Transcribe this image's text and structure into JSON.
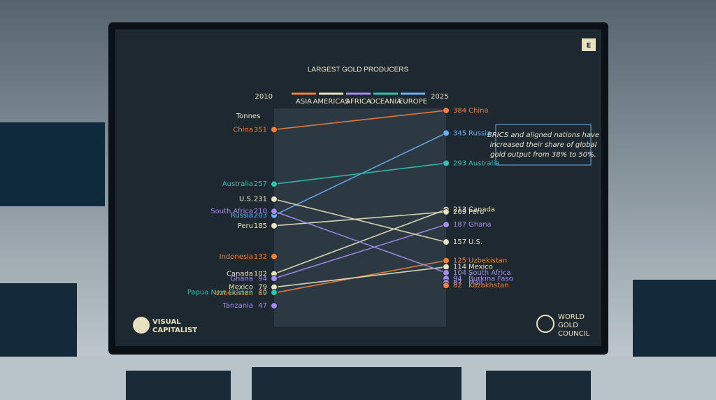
{
  "chart_data": {
    "type": "slope",
    "title": "LARGEST GOLD PRODUCERS",
    "x": [
      "2010",
      "2025"
    ],
    "y_label": "Tonnes",
    "ylim": [
      40,
      390
    ],
    "legend": [
      {
        "name": "ASIA",
        "color": "#f0813a"
      },
      {
        "name": "AMERICAS",
        "color": "#e9e2c0"
      },
      {
        "name": "AFRICA",
        "color": "#a58cf0"
      },
      {
        "name": "OCEANIA",
        "color": "#2ec4b0"
      },
      {
        "name": "EUROPE",
        "color": "#6aaef5"
      }
    ],
    "series": [
      {
        "name": "China",
        "color": "#f0813a",
        "values": [
          351,
          384
        ]
      },
      {
        "name": "Russia",
        "color": "#6aaef5",
        "values": [
          203,
          345
        ]
      },
      {
        "name": "Australia",
        "color": "#2ec4b0",
        "values": [
          257,
          293
        ]
      },
      {
        "name": "Canada",
        "color": "#e9e2c0",
        "values": [
          102,
          213
        ]
      },
      {
        "name": "Peru",
        "color": "#e9e2c0",
        "values": [
          185,
          209
        ]
      },
      {
        "name": "Ghana",
        "color": "#a58cf0",
        "values": [
          94,
          187
        ]
      },
      {
        "name": "U.S.",
        "color": "#e9e2c0",
        "values": [
          231,
          157
        ]
      },
      {
        "name": "Uzbekistan",
        "color": "#f0813a",
        "values": [
          69,
          125
        ]
      },
      {
        "name": "Mexico",
        "color": "#e9e2c0",
        "values": [
          79,
          114
        ]
      },
      {
        "name": "South Africa",
        "color": "#a58cf0",
        "values": [
          210,
          104
        ]
      },
      {
        "name": "Burkina Faso",
        "color": "#a58cf0",
        "values": [
          null,
          94
        ]
      },
      {
        "name": "Mali",
        "color": "#a58cf0",
        "values": [
          null,
          87
        ]
      },
      {
        "name": "Kazakhstan",
        "color": "#f0813a",
        "values": [
          null,
          82
        ]
      },
      {
        "name": "Indonesia",
        "color": "#f0813a",
        "values": [
          132,
          null
        ]
      },
      {
        "name": "Papua New Guinea",
        "color": "#2ec4b0",
        "values": [
          70,
          null
        ]
      },
      {
        "name": "Tanzania",
        "color": "#a58cf0",
        "values": [
          47,
          null
        ]
      }
    ],
    "annotation": [
      "BRICS and aligned nations have",
      "increased their share of global",
      "gold output from 38% to 50%."
    ],
    "logo_left": [
      "VISUAL",
      "CAPITALIST"
    ],
    "logo_right": [
      "WORLD",
      "GOLD",
      "COUNCIL"
    ],
    "badge": "E"
  }
}
